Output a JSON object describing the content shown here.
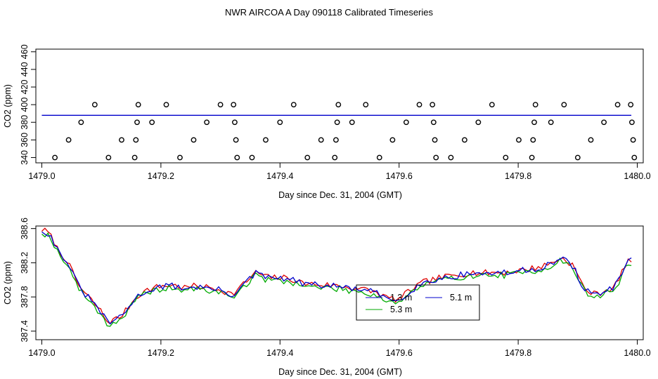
{
  "chart_data": [
    {
      "type": "scatter",
      "title": "NWR AIRCOA A  Day 090118  Calibrated Timeseries",
      "xlabel": "Day since Dec. 31, 2004 (GMT)",
      "ylabel": "CO2 (ppm)",
      "xlim": [
        1478.99,
        1480.01
      ],
      "ylim": [
        334,
        463
      ],
      "xticks": [
        "1479.0",
        "1479.2",
        "1479.4",
        "1479.6",
        "1479.8",
        "1480.0"
      ],
      "yticks": [
        "340",
        "360",
        "380",
        "400",
        "420",
        "440",
        "460"
      ],
      "xtick_values": [
        1479.0,
        1479.2,
        1479.4,
        1479.6,
        1479.8,
        1480.0
      ],
      "ytick_values": [
        340,
        360,
        380,
        400,
        420,
        440,
        460
      ],
      "scatter_points": [
        [
          1479.022,
          340
        ],
        [
          1479.045,
          360
        ],
        [
          1479.066,
          380
        ],
        [
          1479.089,
          400
        ],
        [
          1479.112,
          340
        ],
        [
          1479.134,
          360
        ],
        [
          1479.156,
          340
        ],
        [
          1479.158,
          360
        ],
        [
          1479.16,
          380
        ],
        [
          1479.162,
          400
        ],
        [
          1479.185,
          380
        ],
        [
          1479.209,
          400
        ],
        [
          1479.232,
          340
        ],
        [
          1479.255,
          360
        ],
        [
          1479.277,
          380
        ],
        [
          1479.3,
          400
        ],
        [
          1479.322,
          400
        ],
        [
          1479.324,
          380
        ],
        [
          1479.326,
          360
        ],
        [
          1479.328,
          340
        ],
        [
          1479.353,
          340
        ],
        [
          1479.376,
          360
        ],
        [
          1479.4,
          380
        ],
        [
          1479.423,
          400
        ],
        [
          1479.446,
          340
        ],
        [
          1479.469,
          360
        ],
        [
          1479.492,
          340
        ],
        [
          1479.494,
          360
        ],
        [
          1479.496,
          380
        ],
        [
          1479.498,
          400
        ],
        [
          1479.521,
          380
        ],
        [
          1479.544,
          400
        ],
        [
          1479.567,
          340
        ],
        [
          1479.589,
          360
        ],
        [
          1479.612,
          380
        ],
        [
          1479.634,
          400
        ],
        [
          1479.656,
          400
        ],
        [
          1479.658,
          380
        ],
        [
          1479.66,
          360
        ],
        [
          1479.662,
          340
        ],
        [
          1479.687,
          340
        ],
        [
          1479.71,
          360
        ],
        [
          1479.733,
          380
        ],
        [
          1479.756,
          400
        ],
        [
          1479.779,
          340
        ],
        [
          1479.801,
          360
        ],
        [
          1479.823,
          340
        ],
        [
          1479.825,
          360
        ],
        [
          1479.827,
          380
        ],
        [
          1479.829,
          400
        ],
        [
          1479.855,
          380
        ],
        [
          1479.877,
          400
        ],
        [
          1479.9,
          340
        ],
        [
          1479.922,
          360
        ],
        [
          1479.944,
          380
        ],
        [
          1479.967,
          400
        ],
        [
          1479.989,
          400
        ],
        [
          1479.991,
          380
        ],
        [
          1479.993,
          360
        ],
        [
          1479.995,
          340
        ]
      ],
      "series": [
        {
          "color": "#0000cc",
          "x_start": 1479.0,
          "x_end": 1479.99,
          "y": 387.9
        }
      ]
    },
    {
      "type": "line",
      "xlabel": "Day since Dec. 31, 2004 (GMT)",
      "ylabel": "CO2 (ppm)",
      "xlim": [
        1478.99,
        1480.01
      ],
      "ylim": [
        387.3,
        388.63
      ],
      "xticks": [
        "1479.0",
        "1479.2",
        "1479.4",
        "1479.6",
        "1479.8",
        "1480.0"
      ],
      "yticks": [
        "387.4",
        "387.8",
        "388.2",
        "388.6"
      ],
      "xtick_values": [
        1479.0,
        1479.2,
        1479.4,
        1479.6,
        1479.8,
        1480.0
      ],
      "ytick_values": [
        387.4,
        387.8,
        388.2,
        388.6
      ],
      "anchors_x": [
        1479.0,
        1479.01,
        1479.02,
        1479.03,
        1479.04,
        1479.05,
        1479.06,
        1479.07,
        1479.08,
        1479.09,
        1479.1,
        1479.11,
        1479.12,
        1479.13,
        1479.14,
        1479.15,
        1479.16,
        1479.17,
        1479.18,
        1479.2,
        1479.22,
        1479.24,
        1479.26,
        1479.28,
        1479.3,
        1479.32,
        1479.34,
        1479.36,
        1479.38,
        1479.4,
        1479.42,
        1479.44,
        1479.46,
        1479.48,
        1479.5,
        1479.52,
        1479.54,
        1479.56,
        1479.58,
        1479.6,
        1479.62,
        1479.64,
        1479.66,
        1479.68,
        1479.7,
        1479.72,
        1479.74,
        1479.76,
        1479.78,
        1479.8,
        1479.82,
        1479.84,
        1479.86,
        1479.87,
        1479.88,
        1479.89,
        1479.9,
        1479.91,
        1479.92,
        1479.93,
        1479.94,
        1479.95,
        1479.96,
        1479.97,
        1479.98,
        1479.99
      ],
      "anchors_y": [
        388.58,
        388.55,
        388.45,
        388.3,
        388.25,
        388.1,
        387.95,
        387.85,
        387.78,
        387.7,
        387.62,
        387.5,
        387.52,
        387.55,
        387.62,
        387.72,
        387.8,
        387.85,
        387.88,
        387.92,
        387.93,
        387.9,
        387.92,
        387.9,
        387.88,
        387.82,
        387.95,
        388.08,
        388.02,
        388.02,
        388.0,
        387.95,
        387.94,
        387.93,
        387.92,
        387.9,
        387.88,
        387.85,
        387.78,
        387.76,
        387.88,
        387.96,
        388.0,
        388.03,
        388.05,
        388.08,
        388.07,
        388.08,
        388.08,
        388.1,
        388.12,
        388.15,
        388.2,
        388.25,
        388.22,
        388.18,
        388.05,
        387.9,
        387.85,
        387.82,
        387.85,
        387.88,
        387.9,
        388.0,
        388.18,
        388.22
      ],
      "series": [
        {
          "color": "#dd0000",
          "values_ref": "anchors_y",
          "seed": 7,
          "dy": 0.008
        },
        {
          "color": "#00aa00",
          "values_ref": "anchors_y",
          "seed": 19,
          "dy": -0.025
        },
        {
          "color": "#0000cc",
          "values_ref": "anchors_y",
          "seed": 31,
          "dy": 0.0
        }
      ],
      "legend": {
        "placement": "center-bottom",
        "entries": [
          {
            "label": "1.3 m",
            "color": "#0000cc"
          },
          {
            "label": "5.1 m",
            "color": "#0000cc"
          },
          {
            "label": "5.3 m",
            "color": "#00aa00"
          }
        ]
      }
    }
  ]
}
